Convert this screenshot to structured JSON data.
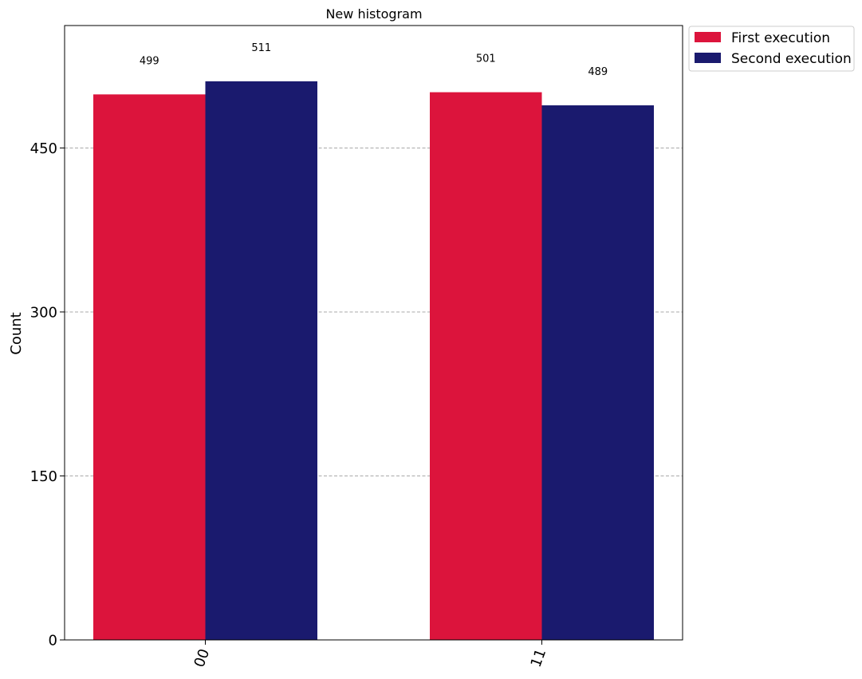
{
  "chart_data": {
    "type": "bar",
    "title": "New histogram",
    "xlabel": "",
    "ylabel": "Count",
    "categories": [
      "00",
      "11"
    ],
    "series": [
      {
        "name": "First execution",
        "color": "#DC143C",
        "values": [
          499,
          501
        ]
      },
      {
        "name": "Second execution",
        "color": "#1A1A6E",
        "values": [
          511,
          489
        ]
      }
    ],
    "ylim": [
      0,
      562
    ],
    "yticks": [
      0,
      150,
      300,
      450
    ],
    "grid": "horizontal dashed",
    "legend_position": "outside upper right"
  }
}
